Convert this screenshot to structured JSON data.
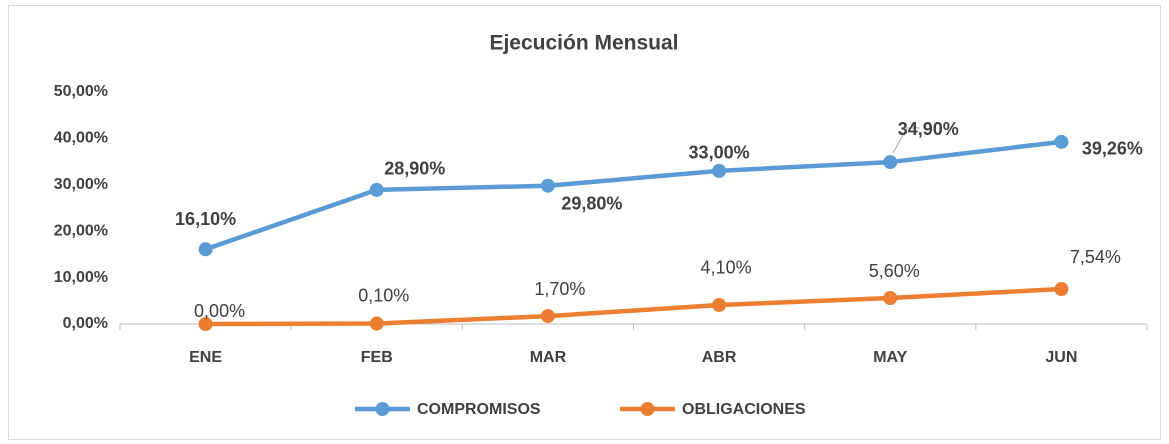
{
  "chart_data": {
    "type": "line",
    "title": "Ejecución Mensual",
    "categories": [
      "ENE",
      "FEB",
      "MAR",
      "ABR",
      "MAY",
      "JUN"
    ],
    "series": [
      {
        "name": "COMPROMISOS",
        "color": "#5B9BD5",
        "values": [
          16.1,
          28.9,
          29.8,
          33.0,
          34.9,
          39.26
        ],
        "value_labels": [
          "16,10%",
          "28,90%",
          "29,80%",
          "33,00%",
          "34,90%",
          "39,26%"
        ]
      },
      {
        "name": "OBLIGACIONES",
        "color": "#ED7D31",
        "values": [
          0.0,
          0.1,
          1.7,
          4.1,
          5.6,
          7.54
        ],
        "value_labels": [
          "0,00%",
          "0,10%",
          "1,70%",
          "4,10%",
          "5,60%",
          "7,54%"
        ]
      }
    ],
    "ylim": [
      0,
      50
    ],
    "yticks": [
      {
        "value": 0,
        "label": "0,00%"
      },
      {
        "value": 10,
        "label": "10,00%"
      },
      {
        "value": 20,
        "label": "20,00%"
      },
      {
        "value": 30,
        "label": "30,00%"
      },
      {
        "value": 40,
        "label": "40,00%"
      },
      {
        "value": 50,
        "label": "50,00%"
      }
    ],
    "grid": false
  }
}
